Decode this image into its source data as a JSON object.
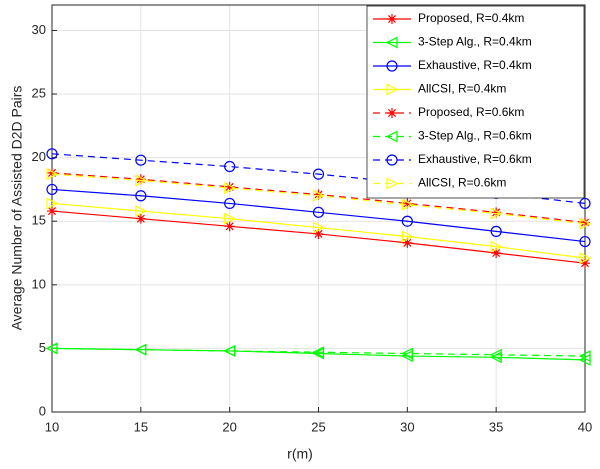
{
  "chart_data": {
    "type": "line",
    "x": [
      10,
      15,
      20,
      25,
      30,
      35,
      40
    ],
    "xlim": [
      10,
      40
    ],
    "xticks": [
      10,
      15,
      20,
      25,
      30,
      35,
      40
    ],
    "ylim": [
      0,
      32
    ],
    "yticks": [
      0,
      5,
      10,
      15,
      20,
      25,
      30
    ],
    "xlabel": "r(m)",
    "ylabel": "Average Number of Assisted D2D Pairs",
    "grid": true,
    "legend": "top-right",
    "series": [
      {
        "name": "Proposed, R=0.4km",
        "color": "#ff0000",
        "marker": "star",
        "dash": false,
        "values": [
          15.8,
          15.2,
          14.6,
          14.0,
          13.3,
          12.5,
          11.7
        ]
      },
      {
        "name": "3-Step Alg., R=0.4km",
        "color": "#00ff00",
        "marker": "triangle-left",
        "dash": false,
        "values": [
          5.0,
          4.9,
          4.8,
          4.6,
          4.4,
          4.3,
          4.1
        ]
      },
      {
        "name": "Exhaustive, R=0.4km",
        "color": "#0000ff",
        "marker": "circle",
        "dash": false,
        "values": [
          17.5,
          17.0,
          16.4,
          15.7,
          15.0,
          14.2,
          13.4
        ]
      },
      {
        "name": "AllCSI, R=0.4km",
        "color": "#ffff00",
        "marker": "triangle-right",
        "dash": false,
        "values": [
          16.4,
          15.8,
          15.2,
          14.5,
          13.8,
          13.0,
          12.1
        ]
      },
      {
        "name": "Proposed, R=0.6km",
        "color": "#ff0000",
        "marker": "star",
        "dash": true,
        "values": [
          18.8,
          18.3,
          17.7,
          17.1,
          16.4,
          15.7,
          14.9
        ]
      },
      {
        "name": "3-Step Alg., R=0.6km",
        "color": "#00ff00",
        "marker": "triangle-left",
        "dash": true,
        "values": [
          5.0,
          4.9,
          4.8,
          4.7,
          4.6,
          4.5,
          4.4
        ]
      },
      {
        "name": "Exhaustive, R=0.6km",
        "color": "#0000ff",
        "marker": "circle",
        "dash": true,
        "values": [
          20.3,
          19.8,
          19.3,
          18.7,
          18.0,
          17.2,
          16.4
        ]
      },
      {
        "name": "AllCSI, R=0.6km",
        "color": "#ffff00",
        "marker": "triangle-right",
        "dash": true,
        "values": [
          18.7,
          18.2,
          17.6,
          17.0,
          16.3,
          15.6,
          14.8
        ]
      }
    ]
  }
}
